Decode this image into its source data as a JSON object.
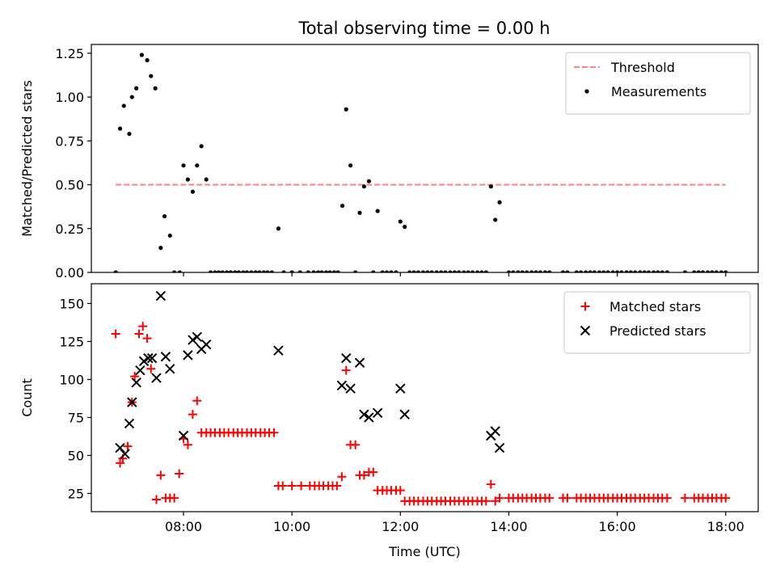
{
  "figure": {
    "title": "Total observing time = 0.00 h"
  },
  "chart_data": [
    {
      "type": "scatter",
      "title": "Total observing time = 0.00 h",
      "xlabel": "",
      "ylabel": "Matched/Predicted stars",
      "xlim": [
        6.3,
        18.6
      ],
      "ylim": [
        0,
        1.3
      ],
      "yticks": [
        0,
        0.25,
        0.5,
        0.75,
        1.0,
        1.25
      ],
      "ytick_labels": [
        "0.00",
        "0.25",
        "0.50",
        "0.75",
        "1.00",
        "1.25"
      ],
      "xticks": [
        8,
        10,
        12,
        14,
        16,
        18
      ],
      "xtick_labels": [],
      "grid": false,
      "legend_position": "upper-right",
      "threshold": {
        "name": "Threshold",
        "y": 0.5,
        "x_range": [
          6.75,
          18.0
        ],
        "color": "#ff8080",
        "style": "dashed"
      },
      "series": [
        {
          "name": "Measurements",
          "color": "#000000",
          "marker": "dot",
          "x": [
            6.75,
            6.83,
            6.9,
            7.0,
            7.05,
            7.13,
            7.23,
            7.33,
            7.4,
            7.48,
            7.58,
            7.65,
            7.75,
            7.83,
            7.93,
            8.0,
            8.08,
            8.17,
            8.25,
            8.33,
            8.42,
            8.5,
            8.58,
            8.65,
            8.72,
            8.8,
            8.87,
            8.95,
            9.02,
            9.1,
            9.17,
            9.25,
            9.33,
            9.4,
            9.48,
            9.55,
            9.63,
            9.75,
            9.85,
            10.0,
            10.15,
            10.3,
            10.4,
            10.48,
            10.55,
            10.63,
            10.7,
            10.78,
            10.85,
            10.93,
            11.0,
            11.08,
            11.17,
            11.25,
            11.33,
            11.42,
            11.5,
            11.58,
            11.67,
            11.75,
            11.83,
            11.92,
            12.0,
            12.08,
            12.17,
            12.25,
            12.33,
            12.42,
            12.5,
            12.58,
            12.67,
            12.75,
            12.83,
            12.92,
            13.0,
            13.08,
            13.17,
            13.25,
            13.33,
            13.42,
            13.5,
            13.58,
            13.67,
            13.75,
            13.83,
            14.0,
            14.08,
            14.17,
            14.25,
            14.33,
            14.42,
            14.5,
            14.58,
            14.67,
            14.75,
            15.0,
            15.08,
            15.25,
            15.33,
            15.42,
            15.5,
            15.58,
            15.67,
            15.75,
            15.83,
            15.92,
            16.0,
            16.08,
            16.17,
            16.25,
            16.33,
            16.42,
            16.5,
            16.58,
            16.67,
            16.75,
            16.83,
            16.92,
            17.25,
            17.42,
            17.5,
            17.58,
            17.67,
            17.75,
            17.83,
            17.92,
            18.0
          ],
          "y": [
            0.0,
            0.82,
            0.95,
            0.79,
            1.0,
            1.05,
            1.24,
            1.21,
            1.12,
            1.05,
            0.14,
            0.32,
            0.21,
            0.0,
            0.0,
            0.61,
            0.53,
            0.46,
            0.61,
            0.72,
            0.53,
            0.0,
            0.0,
            0.0,
            0.0,
            0.0,
            0.0,
            0.0,
            0.0,
            0.0,
            0.0,
            0.0,
            0.0,
            0.0,
            0.0,
            0.0,
            0.0,
            0.25,
            0.0,
            0.0,
            0.0,
            0.0,
            0.0,
            0.0,
            0.0,
            0.0,
            0.0,
            0.0,
            0.0,
            0.38,
            0.93,
            0.61,
            0.0,
            0.34,
            0.49,
            0.52,
            0.0,
            0.35,
            0.0,
            0.0,
            0.0,
            0.0,
            0.29,
            0.26,
            0.0,
            0.0,
            0.0,
            0.0,
            0.0,
            0.0,
            0.0,
            0.0,
            0.0,
            0.0,
            0.0,
            0.0,
            0.0,
            0.0,
            0.0,
            0.0,
            0.0,
            0.0,
            0.49,
            0.3,
            0.4,
            0.0,
            0.0,
            0.0,
            0.0,
            0.0,
            0.0,
            0.0,
            0.0,
            0.0,
            0.0,
            0.0,
            0.0,
            0.0,
            0.0,
            0.0,
            0.0,
            0.0,
            0.0,
            0.0,
            0.0,
            0.0,
            0.0,
            0.0,
            0.0,
            0.0,
            0.0,
            0.0,
            0.0,
            0.0,
            0.0,
            0.0,
            0.0,
            0.0,
            0.0,
            0.0,
            0.0,
            0.0,
            0.0,
            0.0,
            0.0,
            0.0,
            0.0
          ]
        }
      ]
    },
    {
      "type": "scatter",
      "title": "",
      "xlabel": "Time (UTC)",
      "ylabel": "Count",
      "xlim": [
        6.3,
        18.6
      ],
      "ylim": [
        13,
        163
      ],
      "yticks": [
        25,
        50,
        75,
        100,
        125,
        150
      ],
      "ytick_labels": [
        "25",
        "50",
        "75",
        "100",
        "125",
        "150"
      ],
      "xticks": [
        8,
        10,
        12,
        14,
        16,
        18
      ],
      "xtick_labels": [
        "08:00",
        "10:00",
        "12:00",
        "14:00",
        "16:00",
        "18:00"
      ],
      "grid": false,
      "legend_position": "upper-right",
      "series": [
        {
          "name": "Matched stars",
          "color": "#ff0000",
          "marker": "plus",
          "x": [
            6.75,
            6.83,
            6.88,
            6.97,
            7.05,
            7.1,
            7.18,
            7.25,
            7.33,
            7.4,
            7.5,
            7.58,
            7.67,
            7.75,
            7.83,
            7.92,
            8.0,
            8.08,
            8.17,
            8.25,
            8.33,
            8.42,
            8.5,
            8.58,
            8.67,
            8.75,
            8.83,
            8.92,
            9.0,
            9.08,
            9.17,
            9.25,
            9.33,
            9.42,
            9.5,
            9.58,
            9.67,
            9.75,
            9.83,
            10.0,
            10.17,
            10.33,
            10.42,
            10.5,
            10.58,
            10.67,
            10.75,
            10.83,
            10.92,
            11.0,
            11.08,
            11.17,
            11.25,
            11.33,
            11.42,
            11.5,
            11.58,
            11.67,
            11.75,
            11.83,
            11.92,
            12.0,
            12.08,
            12.17,
            12.25,
            12.33,
            12.42,
            12.5,
            12.58,
            12.67,
            12.75,
            12.83,
            12.92,
            13.0,
            13.08,
            13.17,
            13.25,
            13.33,
            13.42,
            13.5,
            13.58,
            13.67,
            13.75,
            13.83,
            14.0,
            14.08,
            14.17,
            14.25,
            14.33,
            14.42,
            14.5,
            14.58,
            14.67,
            14.75,
            15.0,
            15.08,
            15.25,
            15.33,
            15.42,
            15.5,
            15.58,
            15.67,
            15.75,
            15.83,
            15.92,
            16.0,
            16.08,
            16.17,
            16.25,
            16.33,
            16.42,
            16.5,
            16.58,
            16.67,
            16.75,
            16.83,
            16.92,
            17.25,
            17.42,
            17.5,
            17.58,
            17.67,
            17.75,
            17.83,
            17.92,
            18.0
          ],
          "y": [
            130,
            45,
            48,
            56,
            85,
            102,
            130,
            135,
            127,
            107,
            21,
            37,
            22,
            22,
            22,
            38,
            61,
            57,
            77,
            86,
            65,
            65,
            65,
            65,
            65,
            65,
            65,
            65,
            65,
            65,
            65,
            65,
            65,
            65,
            65,
            65,
            65,
            30,
            30,
            30,
            30,
            30,
            30,
            30,
            30,
            30,
            30,
            30,
            36,
            106,
            57,
            57,
            37,
            37,
            39,
            39,
            27,
            27,
            27,
            27,
            27,
            27,
            20,
            20,
            20,
            20,
            20,
            20,
            20,
            20,
            20,
            20,
            20,
            20,
            20,
            20,
            20,
            20,
            20,
            20,
            20,
            31,
            20,
            22,
            22,
            22,
            22,
            22,
            22,
            22,
            22,
            22,
            22,
            22,
            22,
            22,
            22,
            22,
            22,
            22,
            22,
            22,
            22,
            22,
            22,
            22,
            22,
            22,
            22,
            22,
            22,
            22,
            22,
            22,
            22,
            22,
            22,
            22,
            22,
            22,
            22,
            22,
            22,
            22,
            22,
            22
          ]
        },
        {
          "name": "Predicted stars",
          "color": "#000000",
          "marker": "x",
          "x": [
            6.83,
            6.92,
            7.0,
            7.05,
            7.13,
            7.2,
            7.27,
            7.35,
            7.42,
            7.5,
            7.58,
            7.67,
            7.75,
            8.0,
            8.08,
            8.17,
            8.25,
            8.33,
            8.42,
            9.75,
            10.92,
            11.0,
            11.08,
            11.25,
            11.33,
            11.42,
            11.58,
            12.0,
            12.08,
            13.67,
            13.75,
            13.83
          ],
          "y": [
            55,
            51,
            71,
            85,
            98,
            106,
            112,
            114,
            114,
            101,
            155,
            115,
            107,
            63,
            116,
            126,
            128,
            120,
            123,
            119,
            96,
            114,
            94,
            111,
            77,
            75,
            78,
            94,
            77,
            63,
            66,
            55
          ]
        }
      ]
    }
  ]
}
